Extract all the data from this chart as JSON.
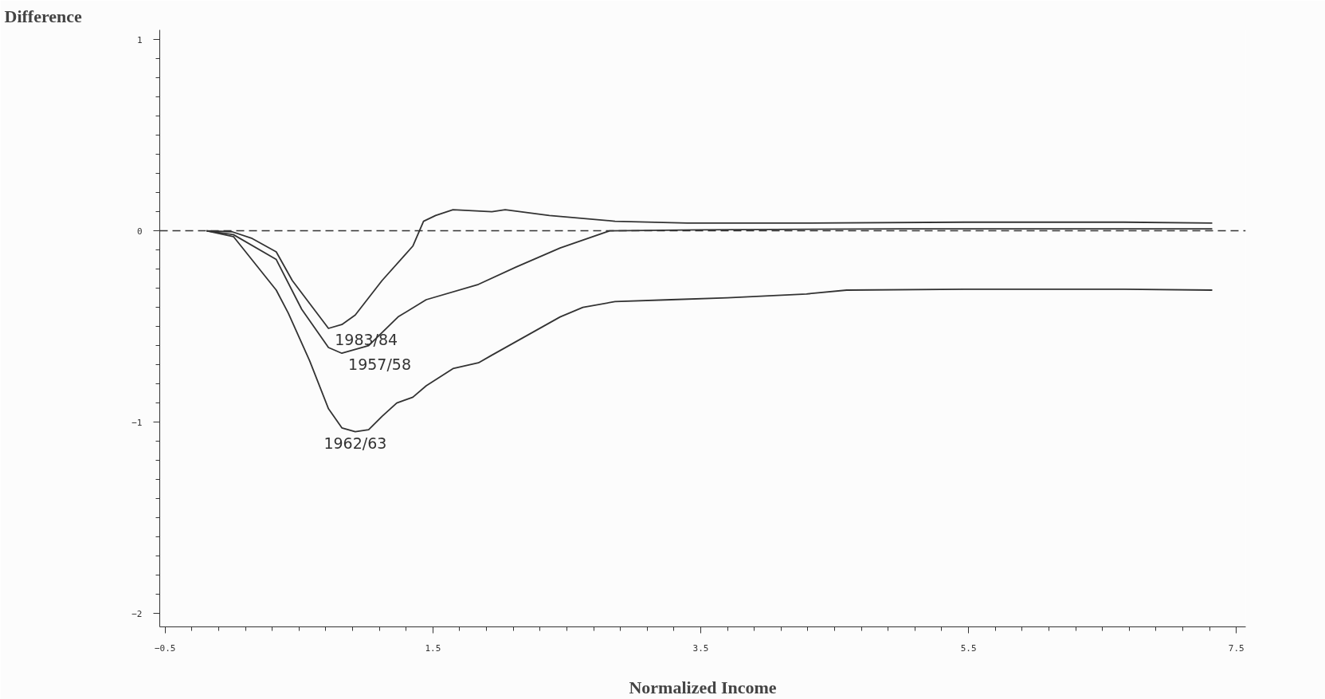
{
  "chart_data": {
    "type": "line",
    "xlabel": "Normalized Income",
    "ylabel": "Difference",
    "xlim": [
      -0.54,
      7.57
    ],
    "ylim": [
      -2.07,
      1.05
    ],
    "xticks": [
      -0.5,
      {
        "value": -0.3,
        "label": null
      },
      {
        "value": -0.1,
        "label": null
      },
      {
        "value": 0.1,
        "label": null
      },
      {
        "value": 0.3,
        "label": null
      },
      {
        "value": 0.5,
        "label": null
      },
      {
        "value": 0.7,
        "label": null
      },
      {
        "value": 0.9,
        "label": null
      },
      {
        "value": 1.1,
        "label": null
      },
      {
        "value": 1.3,
        "label": null
      },
      1.5,
      {
        "value": 1.7,
        "label": null
      },
      {
        "value": 1.9,
        "label": null
      },
      {
        "value": 2.1,
        "label": null
      },
      {
        "value": 2.3,
        "label": null
      },
      {
        "value": 2.5,
        "label": null
      },
      {
        "value": 2.7,
        "label": null
      },
      {
        "value": 2.9,
        "label": null
      },
      {
        "value": 3.1,
        "label": null
      },
      {
        "value": 3.3,
        "label": null
      },
      3.5,
      {
        "value": 3.7,
        "label": null
      },
      {
        "value": 3.9,
        "label": null
      },
      {
        "value": 4.1,
        "label": null
      },
      {
        "value": 4.3,
        "label": null
      },
      {
        "value": 4.5,
        "label": null
      },
      {
        "value": 4.7,
        "label": null
      },
      {
        "value": 4.9,
        "label": null
      },
      {
        "value": 5.1,
        "label": null
      },
      {
        "value": 5.3,
        "label": null
      },
      5.5,
      {
        "value": 5.7,
        "label": null
      },
      {
        "value": 5.9,
        "label": null
      },
      {
        "value": 6.1,
        "label": null
      },
      {
        "value": 6.3,
        "label": null
      },
      {
        "value": 6.5,
        "label": null
      },
      {
        "value": 6.7,
        "label": null
      },
      {
        "value": 6.9,
        "label": null
      },
      {
        "value": 7.1,
        "label": null
      },
      {
        "value": 7.3,
        "label": null
      },
      7.5
    ],
    "yticks": [
      -2,
      {
        "value": -1.9,
        "label": null
      },
      {
        "value": -1.8,
        "label": null
      },
      {
        "value": -1.7,
        "label": null
      },
      {
        "value": -1.6,
        "label": null
      },
      {
        "value": -1.5,
        "label": null
      },
      {
        "value": -1.4,
        "label": null
      },
      {
        "value": -1.3,
        "label": null
      },
      {
        "value": -1.2,
        "label": null
      },
      {
        "value": -1.1,
        "label": null
      },
      -1,
      {
        "value": -0.9,
        "label": null
      },
      {
        "value": -0.8,
        "label": null
      },
      {
        "value": -0.7,
        "label": null
      },
      {
        "value": -0.6,
        "label": null
      },
      {
        "value": -0.5,
        "label": null
      },
      {
        "value": -0.4,
        "label": null
      },
      {
        "value": -0.3,
        "label": null
      },
      {
        "value": -0.2,
        "label": null
      },
      {
        "value": -0.1,
        "label": null
      },
      0,
      {
        "value": 0.1,
        "label": null
      },
      {
        "value": 0.2,
        "label": null
      },
      {
        "value": 0.3,
        "label": null
      },
      {
        "value": 0.4,
        "label": null
      },
      {
        "value": 0.5,
        "label": null
      },
      {
        "value": 0.6,
        "label": null
      },
      {
        "value": 0.7,
        "label": null
      },
      {
        "value": 0.8,
        "label": null
      },
      {
        "value": 0.9,
        "label": null
      },
      1
    ],
    "grid": false,
    "marker": "none",
    "line_style": "solid",
    "series": [
      {
        "name": "1983/84",
        "color": "#333333",
        "x": [
          -0.19,
          0.0,
          0.15,
          0.33,
          0.45,
          0.72,
          0.82,
          0.92,
          1.12,
          1.35,
          1.43,
          1.52,
          1.65,
          1.94,
          2.04,
          2.37,
          2.86,
          3.4,
          4.29,
          5.47,
          6.66,
          7.32
        ],
        "values": [
          0,
          -0.005,
          -0.04,
          -0.11,
          -0.26,
          -0.51,
          -0.49,
          -0.44,
          -0.26,
          -0.08,
          0.05,
          0.08,
          0.11,
          0.1,
          0.11,
          0.08,
          0.05,
          0.04,
          0.04,
          0.045,
          0.045,
          0.04
        ]
      },
      {
        "name": "1957/58",
        "color": "#333333",
        "x": [
          -0.19,
          0.01,
          0.33,
          0.52,
          0.72,
          0.82,
          1.02,
          1.24,
          1.45,
          1.84,
          2.12,
          2.45,
          2.82,
          3.5,
          5.0,
          7.32
        ],
        "values": [
          0,
          -0.02,
          -0.15,
          -0.41,
          -0.61,
          -0.64,
          -0.6,
          -0.45,
          -0.36,
          -0.28,
          -0.19,
          -0.09,
          0.0,
          0.005,
          0.01,
          0.01
        ]
      },
      {
        "name": "1962/63",
        "color": "#333333",
        "x": [
          -0.19,
          0.01,
          0.33,
          0.42,
          0.58,
          0.72,
          0.82,
          0.92,
          1.02,
          1.12,
          1.23,
          1.35,
          1.45,
          1.65,
          1.84,
          1.94,
          2.45,
          2.62,
          2.86,
          3.28,
          3.7,
          4.29,
          4.59,
          5.47,
          6.66,
          7.32
        ],
        "values": [
          0,
          -0.03,
          -0.31,
          -0.43,
          -0.68,
          -0.93,
          -1.03,
          -1.05,
          -1.04,
          -0.97,
          -0.9,
          -0.87,
          -0.81,
          -0.72,
          -0.69,
          -0.65,
          -0.45,
          -0.4,
          -0.37,
          -0.36,
          -0.35,
          -0.33,
          -0.31,
          -0.305,
          -0.305,
          -0.31
        ]
      }
    ],
    "ref_lines": [
      {
        "axis": "y",
        "value": 0,
        "color": "#333333",
        "line_style": "dashed"
      }
    ]
  }
}
